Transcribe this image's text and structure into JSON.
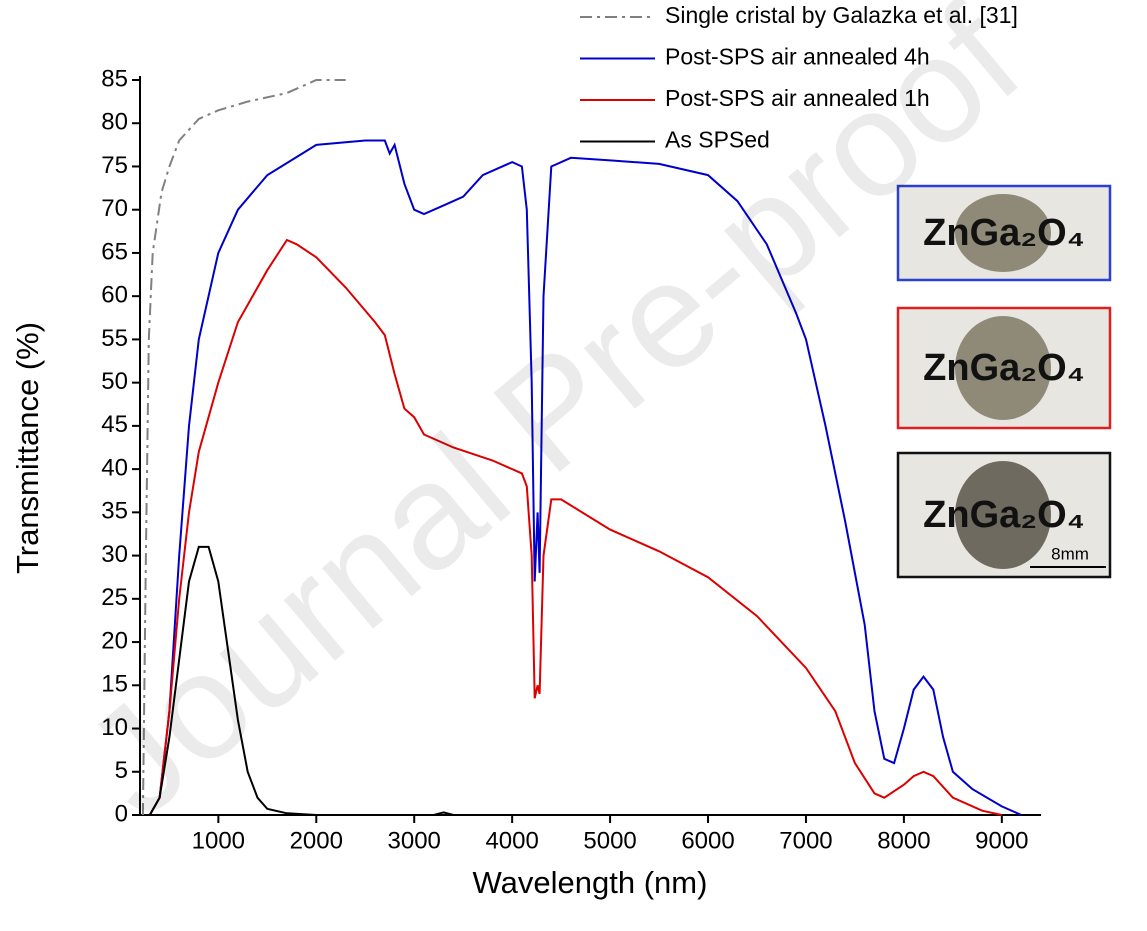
{
  "chart_data": {
    "type": "line",
    "xlabel": "Wavelength (nm)",
    "ylabel": "Transmittance (%)",
    "xlim": [
      200,
      9400
    ],
    "ylim": [
      0,
      85
    ],
    "xticks": [
      1000,
      2000,
      3000,
      4000,
      5000,
      6000,
      7000,
      8000,
      9000
    ],
    "yticks": [
      0,
      5,
      10,
      15,
      20,
      25,
      30,
      35,
      40,
      45,
      50,
      55,
      60,
      65,
      70,
      75,
      80,
      85
    ],
    "legend": "top-right",
    "series": [
      {
        "name": "Single cristal by Galazka et al. [31]",
        "color": "#808080",
        "style": "dashdot",
        "x": [
          230,
          260,
          290,
          330,
          420,
          500,
          600,
          800,
          1000,
          1300,
          1700,
          2000,
          2300
        ],
        "values": [
          0,
          30,
          55,
          65,
          72,
          75,
          78,
          80.5,
          81.5,
          82.5,
          83.5,
          85,
          85
        ]
      },
      {
        "name": "Post-SPS air annealed 4h",
        "color": "#0000cc",
        "style": "solid",
        "x": [
          300,
          400,
          500,
          600,
          700,
          800,
          1000,
          1200,
          1500,
          2000,
          2500,
          2700,
          2750,
          2800,
          2900,
          3000,
          3100,
          3300,
          3500,
          3700,
          4000,
          4100,
          4150,
          4200,
          4230,
          4260,
          4280,
          4320,
          4400,
          4600,
          5000,
          5500,
          6000,
          6300,
          6600,
          6900,
          7000,
          7200,
          7400,
          7600,
          7700,
          7800,
          7900,
          8000,
          8100,
          8200,
          8300,
          8400,
          8500,
          8700,
          9000,
          9200
        ],
        "values": [
          0,
          2,
          12,
          30,
          45,
          55,
          65,
          70,
          74,
          77.5,
          78,
          78,
          76.5,
          77.5,
          73,
          70,
          69.5,
          70.5,
          71.5,
          74,
          75.5,
          75,
          70,
          50,
          27,
          35,
          28,
          60,
          75,
          76,
          75.7,
          75.3,
          74,
          71,
          66,
          58,
          55,
          45,
          34,
          22,
          12,
          6.5,
          6,
          10,
          14.5,
          16,
          14.5,
          9,
          5,
          3,
          1,
          0
        ]
      },
      {
        "name": "Post-SPS air annealed 1h",
        "color": "#dd0000",
        "style": "solid",
        "x": [
          300,
          400,
          500,
          600,
          700,
          800,
          1000,
          1200,
          1500,
          1700,
          1800,
          2000,
          2300,
          2600,
          2700,
          2800,
          2900,
          3000,
          3100,
          3400,
          3800,
          4100,
          4150,
          4200,
          4230,
          4260,
          4280,
          4320,
          4400,
          4500,
          5000,
          5500,
          6000,
          6500,
          7000,
          7300,
          7500,
          7700,
          7800,
          8000,
          8100,
          8200,
          8300,
          8500,
          8800,
          9000
        ],
        "values": [
          0,
          2,
          12,
          25,
          35,
          42,
          50,
          57,
          63,
          66.5,
          66,
          64.5,
          61,
          57,
          55.5,
          51,
          47,
          46,
          44,
          42.5,
          41,
          39.5,
          38,
          30,
          13.5,
          15,
          14,
          30,
          36.5,
          36.5,
          33,
          30.5,
          27.5,
          23,
          17,
          12,
          6,
          2.5,
          2,
          3.5,
          4.5,
          5,
          4.5,
          2,
          0.5,
          0
        ]
      },
      {
        "name": "As SPSed",
        "color": "#000000",
        "style": "solid",
        "x": [
          300,
          400,
          500,
          600,
          700,
          800,
          900,
          1000,
          1100,
          1200,
          1300,
          1400,
          1500,
          1700,
          2000,
          3200,
          3300,
          3400,
          4000
        ],
        "values": [
          0,
          2,
          9,
          18,
          27,
          31,
          31,
          27,
          19,
          11,
          5,
          2,
          0.7,
          0.2,
          0,
          0,
          0.3,
          0,
          0
        ]
      }
    ],
    "photos": [
      {
        "label": "ZnGa₂O₄",
        "border": "#2b3fd0"
      },
      {
        "label": "ZnGa₂O₄",
        "border": "#e02020"
      },
      {
        "label": "ZnGa₂O₄",
        "border": "#111111",
        "scale": "8mm"
      }
    ],
    "watermark": "Journal Pre-proof"
  }
}
